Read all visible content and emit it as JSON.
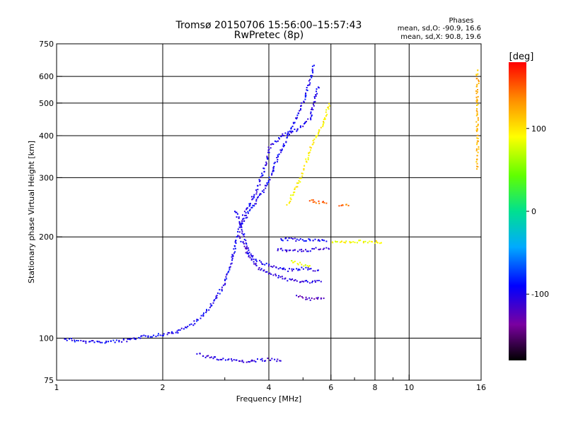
{
  "chart_data": {
    "type": "scatter",
    "title": "Tromsø 20150706 15:56:00–15:57:43",
    "subtitle": "RwPretec (8p)",
    "annotation": {
      "heading": "Phases",
      "line1": "mean, sd,O: -90.9, 16.6",
      "line2": "mean, sd,X:  90.8, 19.6"
    },
    "xlabel": "Frequency [MHz]",
    "ylabel": "Stationary phase Virtual Height [km]",
    "x_scale": "log",
    "y_scale": "log",
    "xlim": [
      1,
      16
    ],
    "ylim": [
      75,
      750
    ],
    "x_ticks": [
      {
        "value": 1,
        "label": "1"
      },
      {
        "value": 2,
        "label": "2"
      },
      {
        "value": 4,
        "label": "4"
      },
      {
        "value": 6,
        "label": "6"
      },
      {
        "value": 8,
        "label": "8"
      },
      {
        "value": 10,
        "label": "10"
      },
      {
        "value": 16,
        "label": "16"
      }
    ],
    "x_minor": [
      3,
      5,
      7,
      9
    ],
    "y_ticks": [
      {
        "value": 75,
        "label": "75"
      },
      {
        "value": 100,
        "label": "100"
      },
      {
        "value": 200,
        "label": "200"
      },
      {
        "value": 300,
        "label": "300"
      },
      {
        "value": 400,
        "label": "400"
      },
      {
        "value": 500,
        "label": "500"
      },
      {
        "value": 600,
        "label": "600"
      },
      {
        "value": 750,
        "label": "750"
      }
    ],
    "grid": true,
    "colorbar": {
      "label": "[deg]",
      "range": [
        -180,
        180
      ],
      "ticks": [
        {
          "value": 100,
          "label": "100"
        },
        {
          "value": 0,
          "label": "0"
        },
        {
          "value": -100,
          "label": "-100"
        }
      ]
    },
    "traces": [
      {
        "phase": -95,
        "points": [
          [
            1.05,
            100
          ],
          [
            1.2,
            98
          ],
          [
            1.4,
            98
          ],
          [
            1.6,
            99
          ],
          [
            1.8,
            102
          ],
          [
            2.0,
            103
          ],
          [
            2.2,
            105
          ],
          [
            2.4,
            110
          ],
          [
            2.6,
            118
          ],
          [
            2.8,
            130
          ],
          [
            3.0,
            148
          ],
          [
            3.1,
            165
          ],
          [
            3.2,
            190
          ],
          [
            3.3,
            215
          ],
          [
            3.5,
            240
          ],
          [
            3.8,
            270
          ],
          [
            4.0,
            300
          ],
          [
            4.2,
            340
          ],
          [
            4.5,
            400
          ],
          [
            4.8,
            460
          ],
          [
            5.0,
            510
          ],
          [
            5.2,
            580
          ],
          [
            5.35,
            650
          ]
        ]
      },
      {
        "phase": -100,
        "points": [
          [
            3.3,
            220
          ],
          [
            3.5,
            250
          ],
          [
            3.7,
            280
          ],
          [
            3.9,
            330
          ],
          [
            4.0,
            370
          ],
          [
            4.3,
            400
          ],
          [
            4.8,
            420
          ],
          [
            5.2,
            450
          ],
          [
            5.4,
            520
          ],
          [
            5.5,
            560
          ]
        ]
      },
      {
        "phase": -105,
        "points": [
          [
            3.3,
            200
          ],
          [
            3.5,
            175
          ],
          [
            3.8,
            160
          ],
          [
            4.1,
            155
          ],
          [
            4.5,
            150
          ],
          [
            5.0,
            148
          ],
          [
            5.6,
            148
          ]
        ]
      },
      {
        "phase": -100,
        "points": [
          [
            3.2,
            240
          ],
          [
            3.3,
            220
          ],
          [
            3.4,
            200
          ],
          [
            3.5,
            180
          ],
          [
            3.7,
            170
          ],
          [
            4.0,
            165
          ],
          [
            4.5,
            160
          ],
          [
            5.0,
            162
          ],
          [
            5.5,
            160
          ]
        ]
      },
      {
        "phase": -110,
        "points": [
          [
            4.2,
            185
          ],
          [
            4.6,
            182
          ],
          [
            5.0,
            183
          ],
          [
            5.5,
            185
          ],
          [
            5.9,
            185
          ]
        ]
      },
      {
        "phase": -95,
        "points": [
          [
            4.3,
            198
          ],
          [
            4.8,
            197
          ],
          [
            5.3,
            196
          ],
          [
            5.8,
            195
          ]
        ]
      },
      {
        "phase": -120,
        "points": [
          [
            4.8,
            135
          ],
          [
            5.1,
            132
          ],
          [
            5.4,
            131
          ],
          [
            5.7,
            132
          ]
        ]
      },
      {
        "phase": -105,
        "points": [
          [
            2.5,
            90
          ],
          [
            2.7,
            88
          ],
          [
            3.0,
            87
          ],
          [
            3.3,
            86
          ],
          [
            3.6,
            86
          ],
          [
            4.0,
            87
          ],
          [
            4.3,
            86
          ]
        ]
      },
      {
        "phase": 95,
        "points": [
          [
            4.5,
            250
          ],
          [
            4.7,
            275
          ],
          [
            4.9,
            300
          ],
          [
            5.1,
            340
          ],
          [
            5.3,
            380
          ],
          [
            5.5,
            410
          ],
          [
            5.7,
            440
          ],
          [
            5.85,
            480
          ],
          [
            5.9,
            500
          ]
        ]
      },
      {
        "phase": 90,
        "points": [
          [
            6.0,
            195
          ],
          [
            6.5,
            194
          ],
          [
            7.0,
            195
          ],
          [
            7.5,
            195
          ],
          [
            8.0,
            194
          ],
          [
            8.3,
            193
          ]
        ]
      },
      {
        "phase": 85,
        "points": [
          [
            4.6,
            170
          ],
          [
            4.8,
            168
          ],
          [
            5.0,
            166
          ],
          [
            5.2,
            165
          ]
        ]
      },
      {
        "phase": 150,
        "points": [
          [
            5.2,
            258
          ],
          [
            5.5,
            255
          ],
          [
            5.8,
            253
          ]
        ]
      },
      {
        "phase": 145,
        "points": [
          [
            6.3,
            250
          ],
          [
            6.7,
            249
          ]
        ]
      },
      {
        "phase": 120,
        "points": [
          [
            15.5,
            630
          ],
          [
            15.6,
            580
          ],
          [
            15.5,
            540
          ],
          [
            15.6,
            470
          ],
          [
            15.5,
            420
          ],
          [
            15.6,
            380
          ],
          [
            15.5,
            320
          ]
        ]
      }
    ]
  }
}
